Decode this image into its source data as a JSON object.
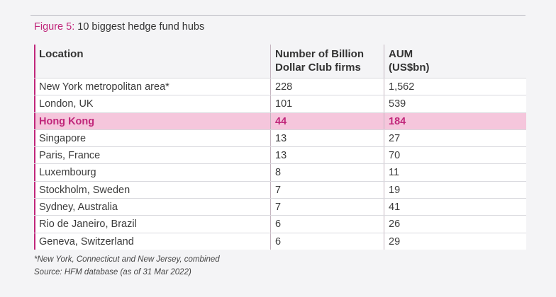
{
  "figure": {
    "label": "Figure 5:",
    "title": "10 biggest hedge fund hubs"
  },
  "colors": {
    "accent": "#c0267a",
    "highlight_row": "#f5c6dc",
    "row_background": "#ffffff",
    "page_background": "#f4f4f6"
  },
  "table": {
    "headers": {
      "location": "Location",
      "firms_line1": "Number of Billion",
      "firms_line2": "Dollar Club firms",
      "aum_line1": "AUM",
      "aum_line2": "(US$bn)"
    },
    "highlighted_row_index": 2,
    "rows": [
      {
        "location": "New York metropolitan area*",
        "firms": "228",
        "aum": "1,562"
      },
      {
        "location": "London, UK",
        "firms": "101",
        "aum": "539"
      },
      {
        "location": "Hong Kong",
        "firms": "44",
        "aum": "184"
      },
      {
        "location": "Singapore",
        "firms": "13",
        "aum": "27"
      },
      {
        "location": "Paris, France",
        "firms": "13",
        "aum": "70"
      },
      {
        "location": "Luxembourg",
        "firms": "8",
        "aum": "11"
      },
      {
        "location": "Stockholm, Sweden",
        "firms": "7",
        "aum": "19"
      },
      {
        "location": "Sydney, Australia",
        "firms": "7",
        "aum": "41"
      },
      {
        "location": "Rio de Janeiro, Brazil",
        "firms": "6",
        "aum": "26"
      },
      {
        "location": "Geneva, Switzerland",
        "firms": "6",
        "aum": "29"
      }
    ]
  },
  "footnotes": {
    "note": "*New York, Connecticut and New Jersey, combined",
    "source": "Source: HFM database (as of 31 Mar 2022)"
  }
}
